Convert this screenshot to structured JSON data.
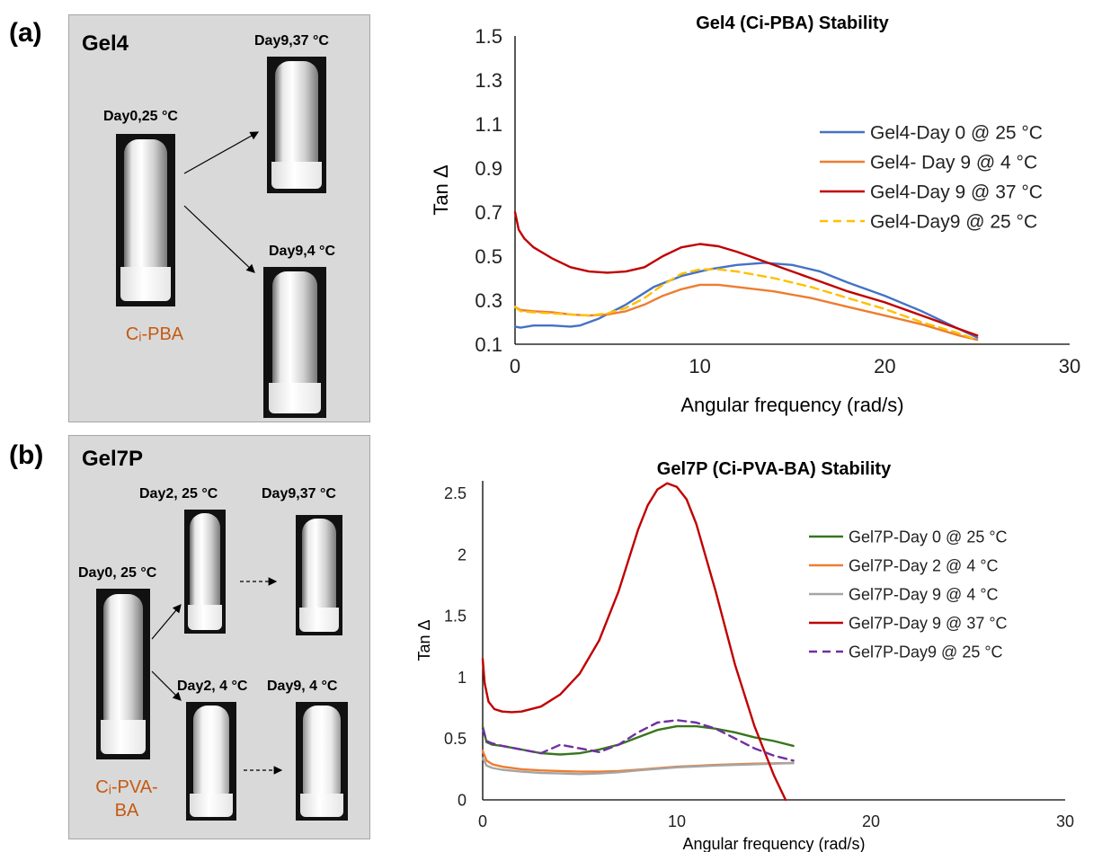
{
  "panels": {
    "a": {
      "letter": "(a)",
      "gel_name": "Gel4",
      "polymer": "Cᵢ-PBA",
      "vials": [
        "Day0,25 °C",
        "Day9,37 °C",
        "Day9,4 °C"
      ]
    },
    "b": {
      "letter": "(b)",
      "gel_name": "Gel7P",
      "polymer_line1": "Cᵢ-PVA-",
      "polymer_line2": "BA",
      "vials": [
        "Day0, 25 °C",
        "Day2, 25 °C",
        "Day9,37 °C",
        "Day2, 4 °C",
        "Day9, 4 °C"
      ]
    }
  },
  "chart_data": [
    {
      "type": "line",
      "title": "Gel4 (Ci-PBA) Stability",
      "xlabel": "Angular frequency (rad/s)",
      "ylabel": "Tan Δ",
      "xlim": [
        0,
        30
      ],
      "ylim": [
        0.1,
        1.5
      ],
      "xticks": [
        0,
        10,
        20,
        30
      ],
      "yticks": [
        0.1,
        0.3,
        0.5,
        0.7,
        0.9,
        1.1,
        1.3,
        1.5
      ],
      "ytick_decimals": 1,
      "legend_position": "right",
      "series": [
        {
          "name": "Gel4-Day 0 @ 25 °C",
          "color": "#4472c4",
          "dash": false,
          "x": [
            0,
            0.3,
            1,
            2,
            3,
            3.5,
            4.5,
            6,
            7.5,
            9,
            10.5,
            12,
            13.5,
            15,
            16.5,
            18,
            20,
            22,
            24,
            25
          ],
          "y": [
            0.18,
            0.175,
            0.185,
            0.185,
            0.18,
            0.185,
            0.215,
            0.28,
            0.36,
            0.41,
            0.44,
            0.46,
            0.47,
            0.46,
            0.43,
            0.38,
            0.32,
            0.25,
            0.17,
            0.13
          ]
        },
        {
          "name": "Gel4- Day 9 @ 4 °C",
          "color": "#ed7d31",
          "dash": false,
          "x": [
            0,
            0.3,
            1,
            2,
            3,
            4,
            5,
            6,
            7,
            8,
            9,
            10,
            11,
            12,
            14,
            16,
            18,
            20,
            22,
            24,
            25
          ],
          "y": [
            0.27,
            0.255,
            0.25,
            0.245,
            0.235,
            0.23,
            0.235,
            0.25,
            0.28,
            0.32,
            0.35,
            0.37,
            0.37,
            0.36,
            0.34,
            0.31,
            0.27,
            0.23,
            0.19,
            0.14,
            0.12
          ]
        },
        {
          "name": "Gel4-Day 9 @ 37 °C",
          "color": "#c00000",
          "dash": false,
          "x": [
            0,
            0.2,
            0.5,
            1,
            2,
            3,
            4,
            5,
            6,
            7,
            8,
            9,
            10,
            11,
            12,
            13,
            14,
            15,
            16,
            18,
            20,
            22,
            24,
            25
          ],
          "y": [
            0.7,
            0.62,
            0.58,
            0.54,
            0.49,
            0.45,
            0.43,
            0.425,
            0.43,
            0.45,
            0.5,
            0.54,
            0.555,
            0.545,
            0.52,
            0.49,
            0.46,
            0.43,
            0.4,
            0.34,
            0.29,
            0.23,
            0.17,
            0.14
          ]
        },
        {
          "name": "Gel4-Day9 @ 25 °C",
          "color": "#ffc000",
          "dash": true,
          "x": [
            0,
            0.3,
            1,
            2,
            3,
            4,
            5,
            6,
            7,
            8,
            9,
            10,
            11,
            12,
            14,
            16,
            18,
            20,
            22,
            24,
            25
          ],
          "y": [
            0.27,
            0.25,
            0.245,
            0.24,
            0.235,
            0.23,
            0.24,
            0.265,
            0.31,
            0.37,
            0.42,
            0.44,
            0.44,
            0.43,
            0.4,
            0.36,
            0.31,
            0.26,
            0.2,
            0.15,
            0.12
          ]
        }
      ]
    },
    {
      "type": "line",
      "title": "Gel7P (Ci-PVA-BA) Stability",
      "xlabel": "Angular frequency (rad/s)",
      "ylabel": "Tan Δ",
      "xlim": [
        0,
        30
      ],
      "ylim": [
        0,
        2.6
      ],
      "xticks": [
        0,
        10,
        20,
        30
      ],
      "yticks": [
        0,
        0.5,
        1,
        1.5,
        2,
        2.5
      ],
      "ytick_labels": [
        "0",
        "0.5",
        "1",
        "1.5",
        "2",
        "2.5"
      ],
      "legend_position": "right",
      "series": [
        {
          "name": "Gel7P-Day 0 @ 25 °C",
          "color": "#38761d",
          "dash": false,
          "x": [
            0,
            0.2,
            0.5,
            1,
            2,
            3,
            4,
            5,
            6,
            7,
            8,
            9,
            10,
            11,
            12,
            13,
            14,
            15,
            16
          ],
          "y": [
            0.6,
            0.47,
            0.45,
            0.44,
            0.41,
            0.38,
            0.37,
            0.38,
            0.41,
            0.45,
            0.51,
            0.57,
            0.6,
            0.6,
            0.58,
            0.55,
            0.51,
            0.48,
            0.44
          ]
        },
        {
          "name": "Gel7P-Day 2 @ 4 °C",
          "color": "#ed7d31",
          "dash": false,
          "x": [
            0,
            0.2,
            0.5,
            1,
            2,
            3,
            4,
            5,
            6,
            7,
            8,
            10,
            12,
            14,
            16
          ],
          "y": [
            0.4,
            0.32,
            0.29,
            0.27,
            0.25,
            0.24,
            0.235,
            0.23,
            0.23,
            0.235,
            0.245,
            0.27,
            0.285,
            0.295,
            0.3
          ]
        },
        {
          "name": "Gel7P-Day 9 @ 4 °C",
          "color": "#a5a5a5",
          "dash": false,
          "x": [
            0,
            0.2,
            0.5,
            1,
            2,
            3,
            4,
            5,
            6,
            7,
            8,
            10,
            12,
            14,
            16
          ],
          "y": [
            0.34,
            0.28,
            0.26,
            0.245,
            0.23,
            0.22,
            0.215,
            0.21,
            0.215,
            0.225,
            0.24,
            0.265,
            0.28,
            0.29,
            0.3
          ]
        },
        {
          "name": "Gel7P-Day 9 @ 37 °C",
          "color": "#c00000",
          "dash": false,
          "x": [
            0,
            0.1,
            0.3,
            0.6,
            1,
            1.5,
            2,
            3,
            4,
            5,
            6,
            7,
            8,
            8.5,
            9,
            9.5,
            10,
            10.5,
            11,
            12,
            13,
            14,
            15,
            15.6
          ],
          "y": [
            1.15,
            0.95,
            0.8,
            0.74,
            0.72,
            0.715,
            0.72,
            0.76,
            0.86,
            1.03,
            1.3,
            1.7,
            2.2,
            2.4,
            2.53,
            2.58,
            2.55,
            2.45,
            2.25,
            1.7,
            1.1,
            0.6,
            0.2,
            0
          ]
        },
        {
          "name": "Gel7P-Day9 @ 25 °C",
          "color": "#7030a0",
          "dash": true,
          "x": [
            0,
            0.2,
            0.5,
            1,
            2,
            3,
            4,
            5,
            6,
            7,
            8,
            9,
            10,
            11,
            12,
            13,
            14,
            15,
            16
          ],
          "y": [
            0.58,
            0.48,
            0.46,
            0.44,
            0.41,
            0.38,
            0.45,
            0.42,
            0.39,
            0.45,
            0.55,
            0.63,
            0.65,
            0.63,
            0.58,
            0.5,
            0.42,
            0.36,
            0.32
          ]
        }
      ]
    }
  ]
}
